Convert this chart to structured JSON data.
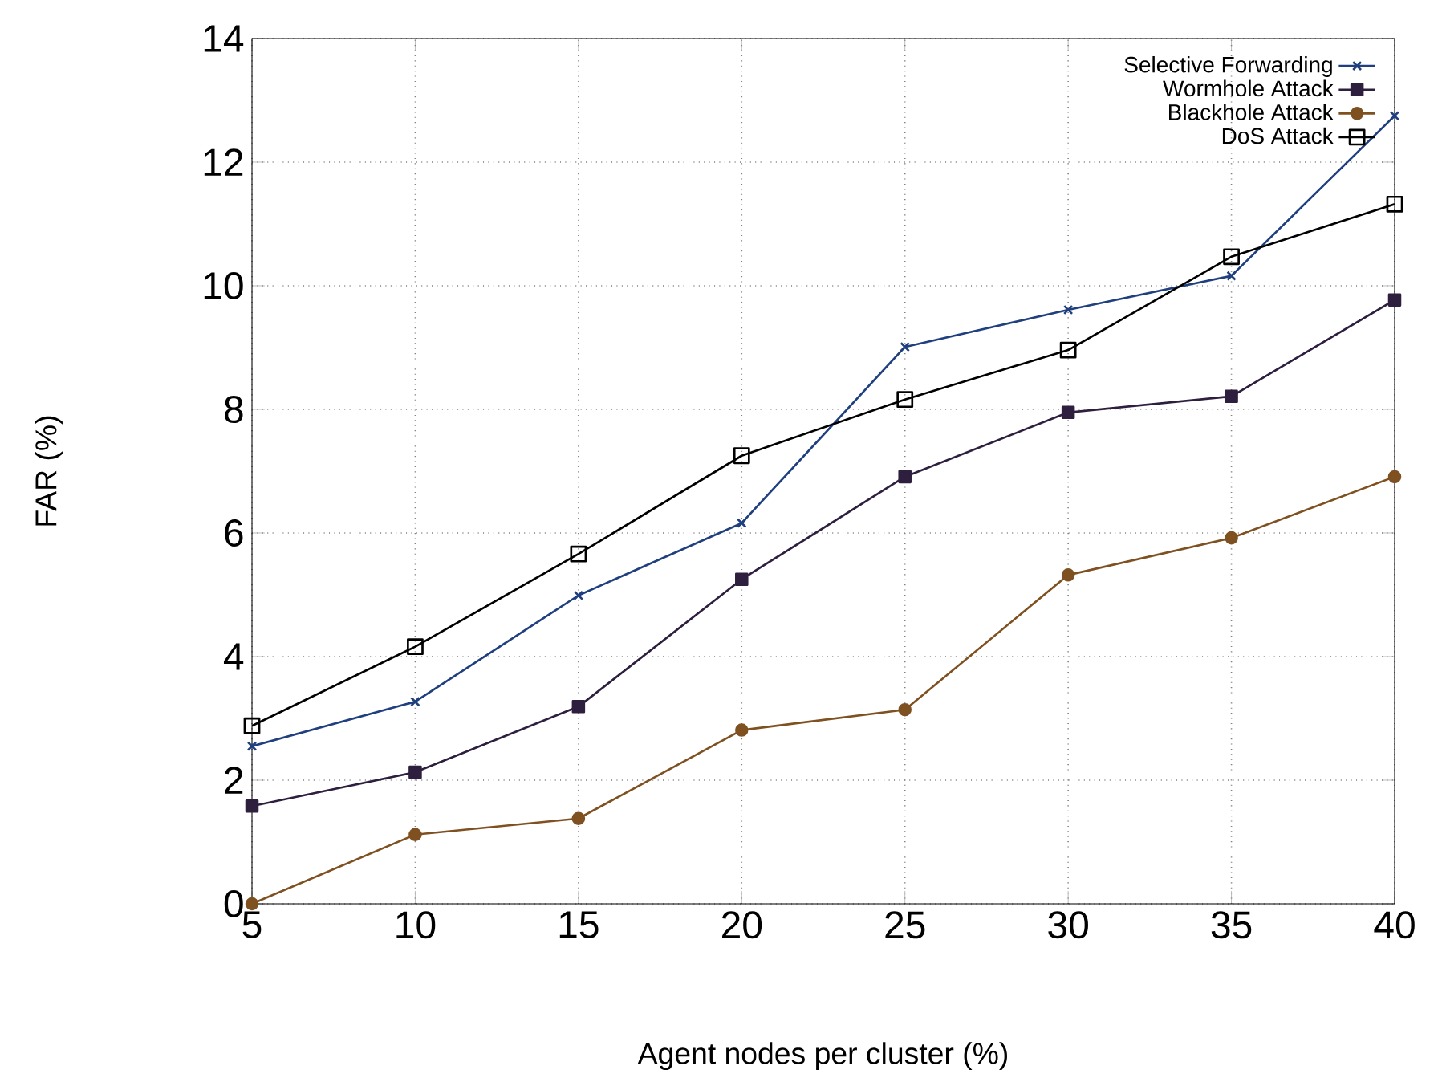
{
  "chart_data": {
    "type": "line",
    "xlabel": "Agent nodes per cluster (%)",
    "ylabel": "FAR (%)",
    "x": [
      5,
      10,
      15,
      20,
      25,
      30,
      35,
      40
    ],
    "xlim": [
      5,
      40
    ],
    "xticks": [
      5,
      10,
      15,
      20,
      25,
      30,
      35,
      40
    ],
    "ylim": [
      0,
      14
    ],
    "yticks": [
      0,
      2,
      4,
      6,
      8,
      10,
      12,
      14
    ],
    "grid": true,
    "legend": "top right",
    "series": [
      {
        "name": "Selective Forwarding",
        "color": "#1f3f7f",
        "marker": "cross",
        "values": [
          2.55,
          3.27,
          4.99,
          6.16,
          9.01,
          9.61,
          10.16,
          12.75
        ]
      },
      {
        "name": "Wormhole Attack",
        "color": "#2f1f3f",
        "marker": "square",
        "values": [
          1.58,
          2.13,
          3.19,
          5.25,
          6.91,
          7.95,
          8.21,
          9.77
        ]
      },
      {
        "name": "Blackhole Attack",
        "color": "#7f5020",
        "marker": "circle",
        "values": [
          0,
          1.12,
          1.38,
          2.81,
          3.14,
          5.32,
          5.92,
          6.91
        ]
      },
      {
        "name": "DoS Attack",
        "color": "#000000",
        "marker": "square open",
        "values": [
          2.88,
          4.16,
          5.66,
          7.25,
          8.16,
          8.96,
          10.47,
          11.32
        ]
      }
    ]
  }
}
